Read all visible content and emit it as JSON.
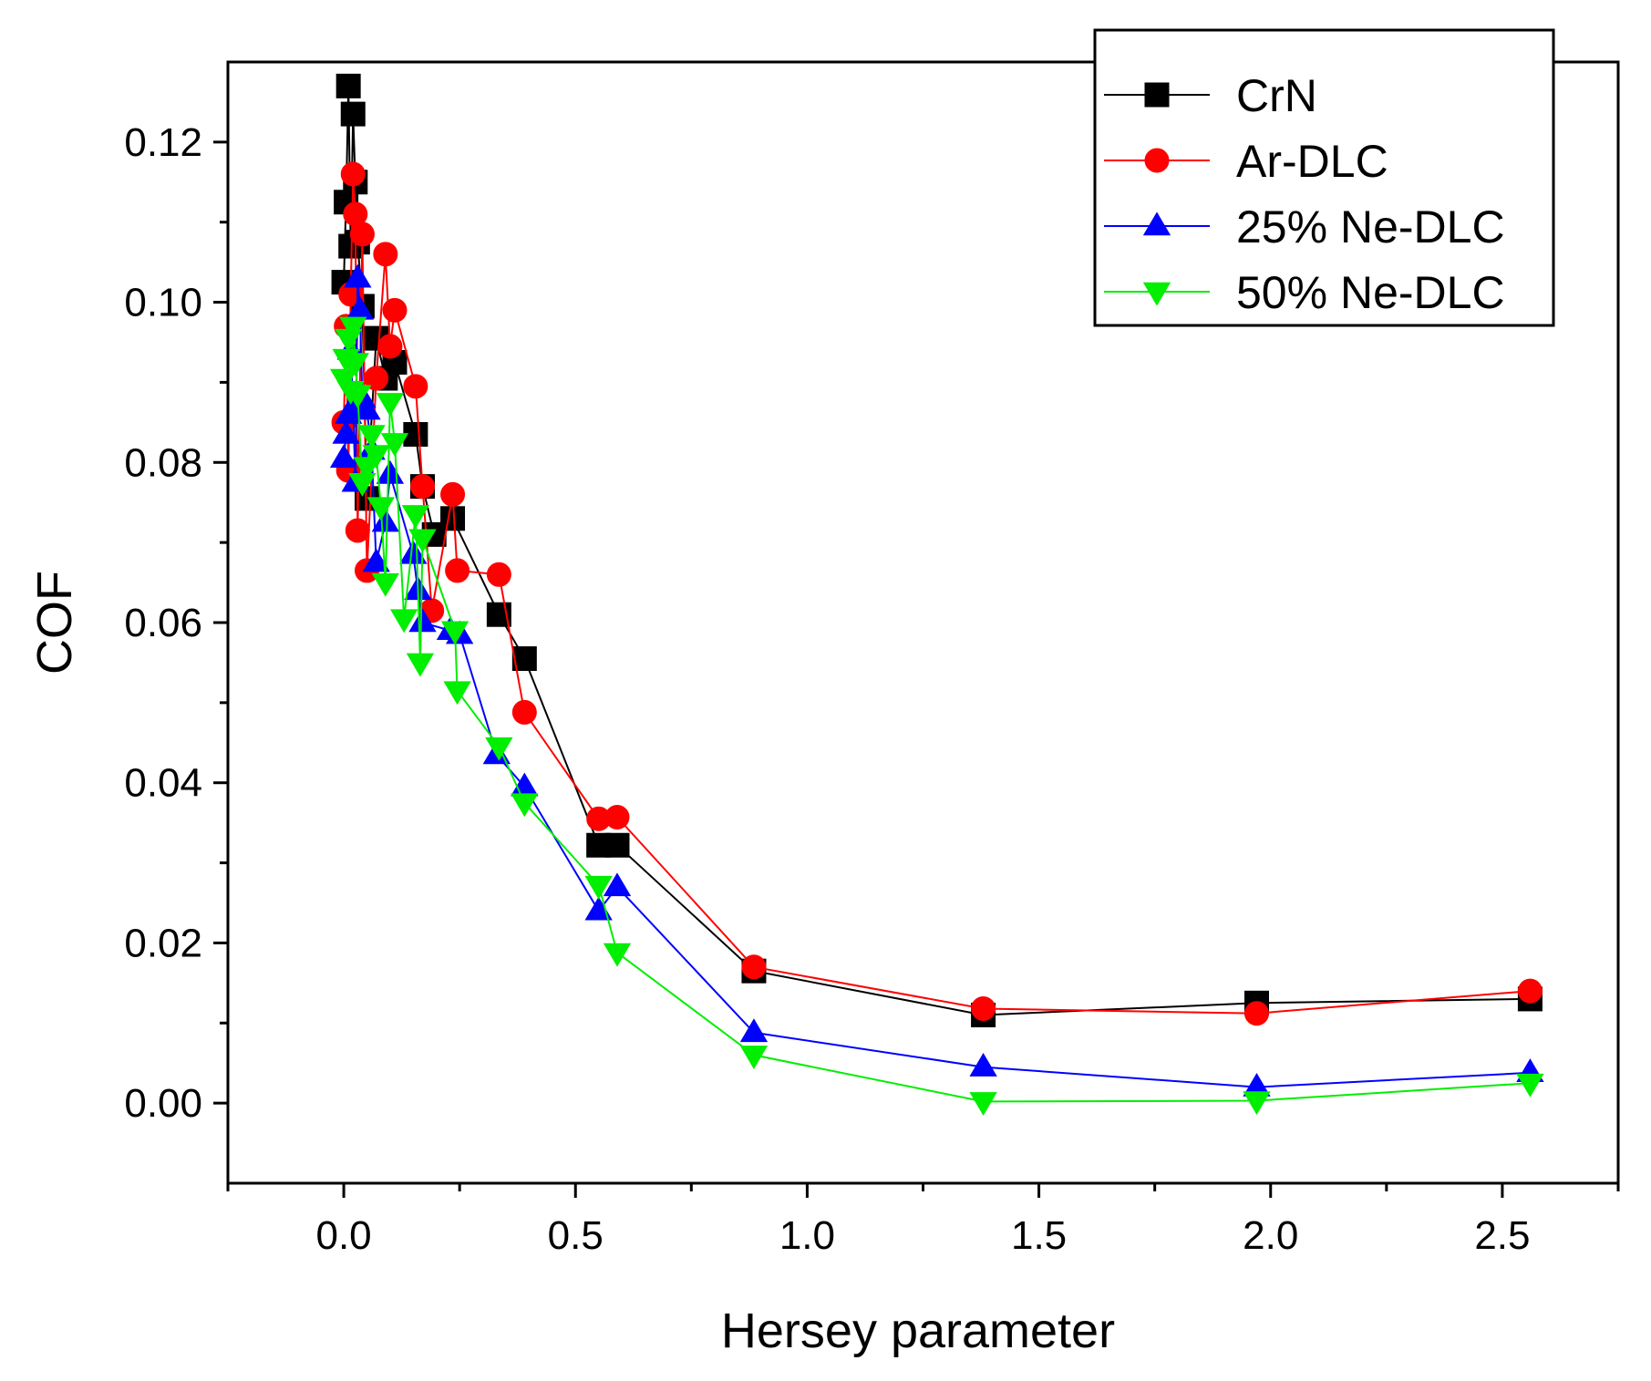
{
  "chart_data": {
    "type": "scatter",
    "mode": "lines+markers",
    "title": "",
    "xlabel": "Hersey parameter",
    "ylabel": "COF",
    "xlim": [
      -0.25,
      2.75
    ],
    "ylim": [
      -0.01,
      0.13
    ],
    "xticks": [
      0.0,
      0.5,
      1.0,
      1.5,
      2.0,
      2.5
    ],
    "xtick_labels": [
      "0.0",
      "0.5",
      "1.0",
      "1.5",
      "2.0",
      "2.5"
    ],
    "yticks": [
      0.0,
      0.02,
      0.04,
      0.06,
      0.08,
      0.1,
      0.12
    ],
    "ytick_labels": [
      "0.00",
      "0.02",
      "0.04",
      "0.06",
      "0.08",
      "0.10",
      "0.12"
    ],
    "grid": false,
    "legend_position": "top-right",
    "series": [
      {
        "name": "CrN",
        "color": "#000000",
        "marker": "square",
        "x": [
          0.0,
          0.005,
          0.01,
          0.015,
          0.02,
          0.025,
          0.03,
          0.04,
          0.05,
          0.07,
          0.09,
          0.11,
          0.155,
          0.17,
          0.195,
          0.235,
          0.335,
          0.39,
          0.55,
          0.59,
          0.885,
          1.38,
          1.97,
          2.56
        ],
        "y": [
          0.1025,
          0.1125,
          0.127,
          0.107,
          0.1235,
          0.115,
          0.1075,
          0.0995,
          0.0755,
          0.0955,
          0.0905,
          0.0925,
          0.0835,
          0.077,
          0.071,
          0.073,
          0.061,
          0.0555,
          0.0322,
          0.0322,
          0.0165,
          0.011,
          0.0125,
          0.013
        ]
      },
      {
        "name": "Ar-DLC",
        "color": "#ff0000",
        "marker": "circle",
        "x": [
          0.0,
          0.005,
          0.01,
          0.015,
          0.02,
          0.025,
          0.03,
          0.04,
          0.05,
          0.07,
          0.09,
          0.1,
          0.11,
          0.155,
          0.17,
          0.19,
          0.235,
          0.245,
          0.335,
          0.39,
          0.55,
          0.59,
          0.885,
          1.38,
          1.97,
          2.56
        ],
        "y": [
          0.085,
          0.097,
          0.079,
          0.101,
          0.116,
          0.111,
          0.0715,
          0.1085,
          0.0665,
          0.0905,
          0.106,
          0.0945,
          0.099,
          0.0895,
          0.077,
          0.0615,
          0.076,
          0.0665,
          0.066,
          0.0488,
          0.0355,
          0.0357,
          0.017,
          0.0118,
          0.0112,
          0.014
        ]
      },
      {
        "name": "25% Ne-DLC",
        "color": "#0000ff",
        "marker": "triangle-up",
        "x": [
          0.0,
          0.005,
          0.01,
          0.015,
          0.02,
          0.025,
          0.03,
          0.035,
          0.04,
          0.05,
          0.06,
          0.07,
          0.09,
          0.1,
          0.15,
          0.16,
          0.17,
          0.23,
          0.25,
          0.33,
          0.39,
          0.55,
          0.59,
          0.885,
          1.38,
          1.97,
          2.56
        ],
        "y": [
          0.0805,
          0.0835,
          0.086,
          0.094,
          0.087,
          0.0775,
          0.103,
          0.099,
          0.088,
          0.0865,
          0.0815,
          0.0675,
          0.0725,
          0.0785,
          0.0685,
          0.064,
          0.06,
          0.059,
          0.0585,
          0.0435,
          0.0395,
          0.024,
          0.027,
          0.0088,
          0.0045,
          0.002,
          0.0038
        ]
      },
      {
        "name": "50% Ne-DLC",
        "color": "#00ee00",
        "marker": "triangle-down",
        "x": [
          0.0,
          0.005,
          0.01,
          0.015,
          0.02,
          0.025,
          0.03,
          0.04,
          0.05,
          0.06,
          0.07,
          0.08,
          0.09,
          0.1,
          0.11,
          0.13,
          0.155,
          0.165,
          0.17,
          0.24,
          0.245,
          0.335,
          0.39,
          0.55,
          0.59,
          0.885,
          1.38,
          1.97,
          2.56
        ],
        "y": [
          0.0905,
          0.093,
          0.0955,
          0.089,
          0.097,
          0.0925,
          0.0885,
          0.0775,
          0.0795,
          0.0835,
          0.081,
          0.0745,
          0.065,
          0.0875,
          0.0825,
          0.0605,
          0.0735,
          0.055,
          0.0705,
          0.059,
          0.0515,
          0.0445,
          0.0375,
          0.0272,
          0.0188,
          0.006,
          0.0002,
          0.0003,
          0.0025
        ]
      }
    ]
  }
}
